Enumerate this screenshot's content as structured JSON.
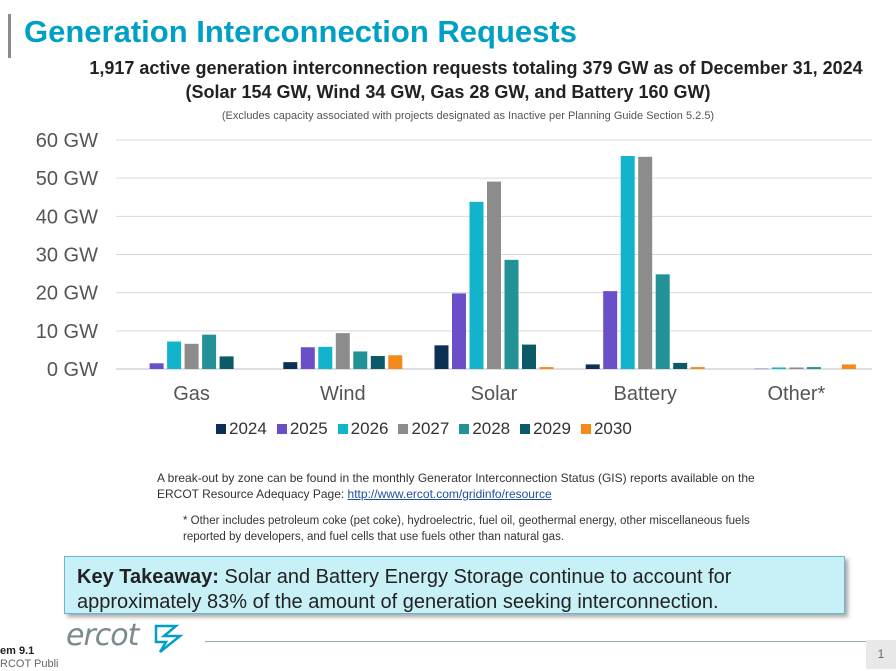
{
  "header": {
    "title": "Generation Interconnection Requests",
    "subtitle_line1": "1,917 active generation interconnection requests totaling 379 GW as of December 31, 2024",
    "subtitle_line2": "(Solar 154 GW, Wind 34 GW, Gas 28 GW, and Battery 160 GW)",
    "note": "(Excludes capacity associated with projects designated as Inactive per Planning Guide Section 5.2.5)"
  },
  "chart_data": {
    "type": "bar",
    "categories": [
      "Gas",
      "Wind",
      "Solar",
      "Battery",
      "Other*"
    ],
    "series": [
      {
        "name": "2024",
        "color": "#0b2f55",
        "values": [
          0,
          1.8,
          6.2,
          1.2,
          0
        ]
      },
      {
        "name": "2025",
        "color": "#6b4fc8",
        "values": [
          1.5,
          5.7,
          19.8,
          20.4,
          0.1
        ]
      },
      {
        "name": "2026",
        "color": "#12b4cc",
        "values": [
          7.2,
          5.8,
          43.8,
          55.8,
          0.4
        ]
      },
      {
        "name": "2027",
        "color": "#8c8c8c",
        "values": [
          6.6,
          9.4,
          49.1,
          55.6,
          0.4
        ]
      },
      {
        "name": "2028",
        "color": "#239296",
        "values": [
          9.0,
          4.6,
          28.6,
          24.8,
          0.5
        ]
      },
      {
        "name": "2029",
        "color": "#0c5a68",
        "values": [
          3.3,
          3.4,
          6.4,
          1.6,
          0
        ]
      },
      {
        "name": "2030",
        "color": "#f48a1c",
        "values": [
          0,
          3.6,
          0.5,
          0.5,
          1.2
        ]
      }
    ],
    "ylim": [
      0,
      60
    ],
    "yticks": [
      0,
      10,
      20,
      30,
      40,
      50,
      60
    ],
    "ytick_labels": [
      "0 GW",
      "10 GW",
      "20 GW",
      "30 GW",
      "40 GW",
      "50 GW",
      "60 GW"
    ],
    "grid": true,
    "legend_position": "bottom"
  },
  "breakout": {
    "text": "A break-out by zone can be found in the monthly Generator Interconnection Status (GIS) reports available on the ERCOT Resource Adequacy Page: ",
    "link": "http://www.ercot.com/gridinfo/resource"
  },
  "footnote": "* Other includes petroleum coke (pet coke), hydroelectric, fuel oil, geothermal energy, other miscellaneous fuels reported by developers, and fuel cells that use fuels other than natural gas.",
  "takeaway": {
    "label": "Key Takeaway:",
    "text": " Solar and Battery Energy Storage continue to account for approximately 83% of the amount of generation seeking interconnection."
  },
  "footer": {
    "item": "em 9.1",
    "public": "RCOT Publi",
    "logo": "ercot",
    "page": "1"
  }
}
